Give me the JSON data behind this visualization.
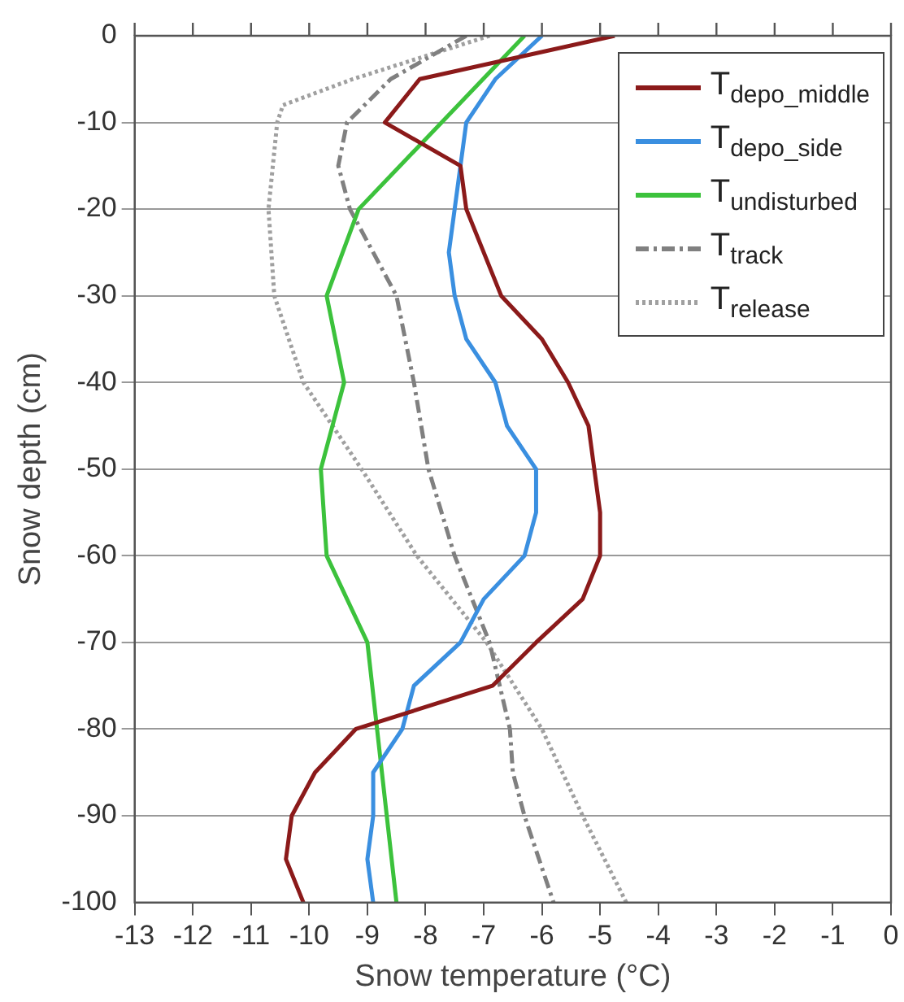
{
  "chart_data": {
    "type": "line",
    "xlabel": "Snow temperature (°C)",
    "ylabel": "Snow depth (cm)",
    "xlim": [
      -13,
      0
    ],
    "xticks": [
      -13,
      -12,
      -11,
      -10,
      -9,
      -8,
      -7,
      -6,
      -5,
      -4,
      -3,
      -2,
      -1,
      0
    ],
    "ylim": [
      -100,
      0
    ],
    "yticks": [
      -100,
      -90,
      -80,
      -70,
      -60,
      -50,
      -40,
      -30,
      -20,
      -10,
      0
    ],
    "grid": "y",
    "legend": "top right",
    "marker": "none",
    "series": [
      {
        "name": "T$_{depo_middle}$",
        "color": "#8b1a1a",
        "line_style": "solid",
        "x": [
          -4.75,
          -8.1,
          -8.7,
          -7.4,
          -7.3,
          -7.0,
          -6.7,
          -6.0,
          -5.55,
          -5.2,
          -5.1,
          -5.0,
          -5.0,
          -5.3,
          -6.1,
          -6.85,
          -9.2,
          -9.9,
          -10.3,
          -10.4,
          -10.1
        ],
        "values": [
          0,
          -5,
          -10,
          -15,
          -20,
          -25,
          -30,
          -35,
          -40,
          -45,
          -50,
          -55,
          -60,
          -65,
          -70,
          -75,
          -80,
          -85,
          -90,
          -95,
          -100
        ]
      },
      {
        "name": "T$_{depo_side}$",
        "color": "#3a8fe0",
        "line_style": "solid",
        "x": [
          -6.0,
          -6.8,
          -7.3,
          -7.4,
          -7.5,
          -7.6,
          -7.5,
          -7.3,
          -6.8,
          -6.6,
          -6.1,
          -6.1,
          -6.3,
          -7.0,
          -7.4,
          -8.2,
          -8.4,
          -8.9,
          -8.9,
          -9.0,
          -8.9
        ],
        "values": [
          0,
          -5,
          -10,
          -15,
          -20,
          -25,
          -30,
          -35,
          -40,
          -45,
          -50,
          -55,
          -60,
          -65,
          -70,
          -75,
          -80,
          -85,
          -90,
          -95,
          -100
        ]
      },
      {
        "name": "T$_{undisturbed}$",
        "color": "#3cc23c",
        "line_style": "solid",
        "x": [
          -6.3,
          -9.15,
          -9.7,
          -9.4,
          -9.8,
          -9.7,
          -9.0,
          -8.5
        ],
        "values": [
          0,
          -20,
          -30,
          -40,
          -50,
          -60,
          -70,
          -100
        ]
      },
      {
        "name": "T$_{track}$",
        "color": "#808080",
        "line_style": "dashed",
        "x": [
          -7.3,
          -8.6,
          -9.35,
          -9.5,
          -9.3,
          -8.5,
          -8.2,
          -7.95,
          -7.5,
          -6.9,
          -6.55,
          -6.5,
          -6.3,
          -5.8
        ],
        "values": [
          0,
          -5,
          -10,
          -15,
          -20,
          -30,
          -40,
          -50,
          -60,
          -70,
          -80,
          -85,
          -90,
          -100
        ]
      },
      {
        "name": "T$_{release}$",
        "color": "#a0a0a0",
        "line_style": "dotted",
        "x": [
          -6.9,
          -9.25,
          -10.45,
          -10.55,
          -10.7,
          -10.6,
          -10.1,
          -9.1,
          -8.15,
          -6.95,
          -6.0,
          -5.3,
          -4.55
        ],
        "values": [
          0,
          -5,
          -8,
          -10,
          -20,
          -30,
          -40,
          -50,
          -60,
          -70,
          -80,
          -90,
          -100
        ]
      }
    ]
  }
}
